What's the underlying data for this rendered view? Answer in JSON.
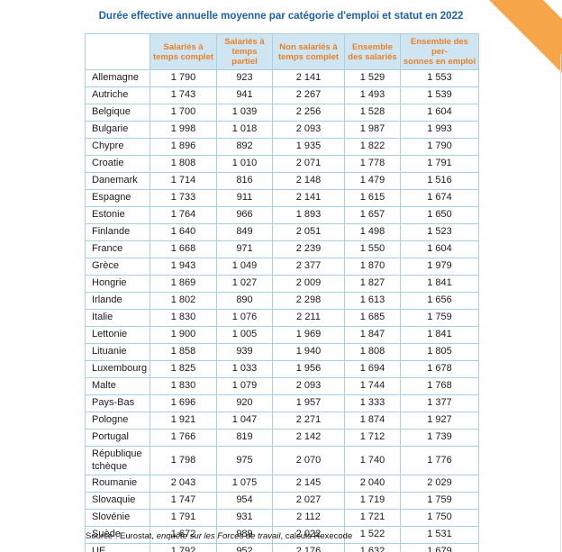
{
  "page": {
    "title": "Durée effective annuelle moyenne par catégorie d'emploi et statut en 2022",
    "source_prefix": "Source : Eurostat, ",
    "source_italic": "enquête sur les Forces de travail",
    "source_suffix": ", calculs Rexecode"
  },
  "colors": {
    "title_blue": "#2061a9",
    "header_orange_text": "#e8822a",
    "header_bg_blue": "#cfe5f2",
    "border_blue": "#a9cfe3",
    "ribbon_orange": "#f7a549"
  },
  "table": {
    "headers": [
      "",
      "Salariés à\ntemps complet",
      "Salariés à\ntemps partiel",
      "Non salariés à\ntemps complet",
      "Ensemble\ndes salariés",
      "Ensemble des per-\nsonnes en emploi"
    ],
    "rows": [
      {
        "country": "Allemagne",
        "values": [
          "1 790",
          "923",
          "2 141",
          "1 529",
          "1 553"
        ]
      },
      {
        "country": "Autriche",
        "values": [
          "1 743",
          "941",
          "2 267",
          "1 493",
          "1 539"
        ]
      },
      {
        "country": "Belgique",
        "values": [
          "1 700",
          "1 039",
          "2 256",
          "1 528",
          "1 604"
        ]
      },
      {
        "country": "Bulgarie",
        "values": [
          "1 998",
          "1 018",
          "2 093",
          "1 987",
          "1 993"
        ]
      },
      {
        "country": "Chypre",
        "values": [
          "1 896",
          "892",
          "1 935",
          "1 822",
          "1 790"
        ]
      },
      {
        "country": "Croatie",
        "values": [
          "1 808",
          "1 010",
          "2 071",
          "1 778",
          "1 791"
        ]
      },
      {
        "country": "Danemark",
        "values": [
          "1 714",
          "816",
          "2 148",
          "1 479",
          "1 516"
        ]
      },
      {
        "country": "Espagne",
        "values": [
          "1 733",
          "911",
          "2 141",
          "1 615",
          "1 674"
        ]
      },
      {
        "country": "Estonie",
        "values": [
          "1 764",
          "966",
          "1 893",
          "1 657",
          "1 650"
        ]
      },
      {
        "country": "Finlande",
        "values": [
          "1 640",
          "849",
          "2 051",
          "1 498",
          "1 523"
        ]
      },
      {
        "country": "France",
        "values": [
          "1 668",
          "971",
          "2 239",
          "1 550",
          "1 604"
        ]
      },
      {
        "country": "Grèce",
        "values": [
          "1 943",
          "1 049",
          "2 377",
          "1 870",
          "1 979"
        ]
      },
      {
        "country": "Hongrie",
        "values": [
          "1 869",
          "1 027",
          "2 009",
          "1 827",
          "1 841"
        ]
      },
      {
        "country": "Irlande",
        "values": [
          "1 802",
          "890",
          "2 298",
          "1 613",
          "1 656"
        ]
      },
      {
        "country": "Italie",
        "values": [
          "1 830",
          "1 076",
          "2 211",
          "1 685",
          "1 759"
        ]
      },
      {
        "country": "Lettonie",
        "values": [
          "1 900",
          "1 005",
          "1 969",
          "1 847",
          "1 841"
        ]
      },
      {
        "country": "Lituanie",
        "values": [
          "1 858",
          "939",
          "1 940",
          "1 808",
          "1 805"
        ]
      },
      {
        "country": "Luxembourg",
        "values": [
          "1 825",
          "1 033",
          "1 956",
          "1 694",
          "1 678"
        ]
      },
      {
        "country": "Malte",
        "values": [
          "1 830",
          "1 079",
          "2 093",
          "1 744",
          "1 768"
        ]
      },
      {
        "country": "Pays-Bas",
        "values": [
          "1 696",
          "920",
          "1 957",
          "1 333",
          "1 377"
        ]
      },
      {
        "country": "Pologne",
        "values": [
          "1 921",
          "1 047",
          "2 271",
          "1 874",
          "1 927"
        ]
      },
      {
        "country": "Portugal",
        "values": [
          "1 766",
          "819",
          "2 142",
          "1 712",
          "1 739"
        ]
      },
      {
        "country": "République tchèque",
        "values": [
          "1 798",
          "975",
          "2 070",
          "1 740",
          "1 776"
        ]
      },
      {
        "country": "Roumanie",
        "values": [
          "2 043",
          "1 075",
          "2 145",
          "2 040",
          "2 029"
        ]
      },
      {
        "country": "Slovaquie",
        "values": [
          "1 747",
          "954",
          "2 027",
          "1 719",
          "1 759"
        ]
      },
      {
        "country": "Slovénie",
        "values": [
          "1 791",
          "931",
          "2 112",
          "1 721",
          "1 750"
        ]
      },
      {
        "country": "Suède",
        "values": [
          "1 672",
          "989",
          "2 022",
          "1 522",
          "1 531"
        ]
      },
      {
        "country": "UE",
        "values": [
          "1 792",
          "952",
          "2 176",
          "1 632",
          "1 679"
        ]
      }
    ]
  }
}
